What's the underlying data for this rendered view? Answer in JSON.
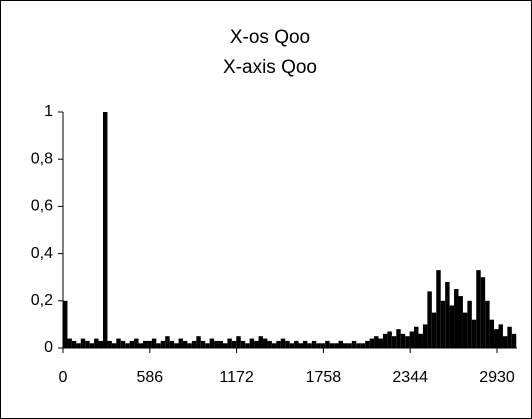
{
  "chart_data": {
    "type": "bar",
    "title": "X-os Qoo",
    "subtitle": "X-axis Qoo",
    "x": [
      15,
      45,
      75,
      105,
      135,
      165,
      195,
      225,
      255,
      285,
      315,
      345,
      375,
      405,
      435,
      465,
      495,
      525,
      555,
      585,
      615,
      645,
      675,
      705,
      735,
      765,
      795,
      825,
      855,
      885,
      915,
      945,
      975,
      1005,
      1035,
      1065,
      1095,
      1125,
      1155,
      1185,
      1215,
      1245,
      1275,
      1305,
      1335,
      1365,
      1395,
      1425,
      1455,
      1485,
      1515,
      1545,
      1575,
      1605,
      1635,
      1665,
      1695,
      1725,
      1755,
      1785,
      1815,
      1845,
      1875,
      1905,
      1935,
      1965,
      1995,
      2025,
      2055,
      2085,
      2115,
      2145,
      2175,
      2205,
      2235,
      2265,
      2295,
      2325,
      2355,
      2385,
      2415,
      2445,
      2475,
      2505,
      2535,
      2565,
      2595,
      2625,
      2655,
      2685,
      2715,
      2745,
      2775,
      2805,
      2835,
      2865,
      2895,
      2925,
      2955,
      2985,
      3015,
      3045
    ],
    "values": [
      0.2,
      0.04,
      0.03,
      0.02,
      0.04,
      0.03,
      0.02,
      0.04,
      0.03,
      1,
      0.03,
      0.02,
      0.04,
      0.03,
      0.02,
      0.03,
      0.04,
      0.02,
      0.03,
      0.03,
      0.04,
      0.02,
      0.03,
      0.05,
      0.03,
      0.02,
      0.04,
      0.03,
      0.02,
      0.03,
      0.05,
      0.03,
      0.02,
      0.04,
      0.03,
      0.03,
      0.02,
      0.04,
      0.03,
      0.05,
      0.03,
      0.02,
      0.04,
      0.03,
      0.05,
      0.04,
      0.03,
      0.02,
      0.03,
      0.04,
      0.03,
      0.02,
      0.03,
      0.02,
      0.03,
      0.02,
      0.03,
      0.02,
      0.02,
      0.03,
      0.02,
      0.02,
      0.03,
      0.02,
      0.02,
      0.03,
      0.02,
      0.02,
      0.03,
      0.04,
      0.05,
      0.04,
      0.06,
      0.07,
      0.05,
      0.08,
      0.06,
      0.05,
      0.07,
      0.09,
      0.06,
      0.1,
      0.24,
      0.15,
      0.33,
      0.2,
      0.28,
      0.18,
      0.25,
      0.22,
      0.15,
      0.2,
      0.12,
      0.33,
      0.3,
      0.2,
      0.12,
      0.08,
      0.1,
      0.05,
      0.09,
      0.06
    ],
    "color": "#000000",
    "xlim": [
      0,
      3065
    ],
    "xticks": [
      0,
      586,
      1172,
      1758,
      2344,
      2930
    ],
    "ylim": [
      0,
      1
    ],
    "yticks": [
      0,
      {
        "value": 0.2,
        "label": "0,2"
      },
      {
        "value": 0.4,
        "label": "0,4"
      },
      {
        "value": 0.6,
        "label": "0,6"
      },
      {
        "value": 0.8,
        "label": "0,8"
      },
      1
    ],
    "grid": false
  }
}
